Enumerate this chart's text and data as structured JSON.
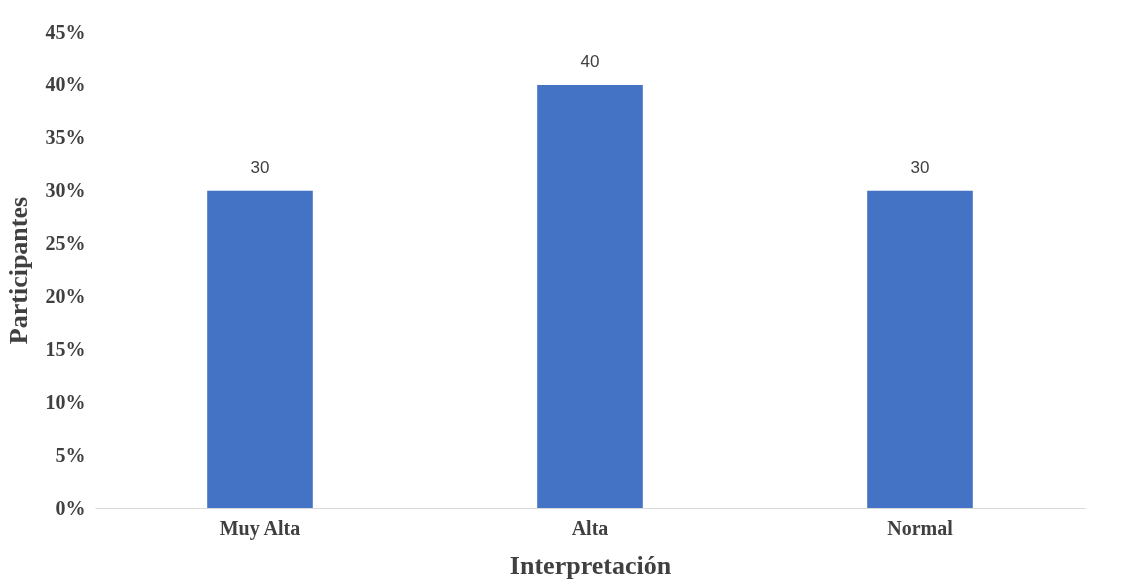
{
  "chart_data": {
    "type": "bar",
    "xlabel": "Interpretación",
    "ylabel": "Participantes",
    "categories": [
      "Muy Alta",
      "Alta",
      "Normal"
    ],
    "values": [
      30,
      40,
      30
    ],
    "color": "#4472c4",
    "data_labels": true,
    "ylim": [
      0,
      45
    ],
    "yticks": [
      {
        "value": 0,
        "label": "0%"
      },
      {
        "value": 5,
        "label": "5%"
      },
      {
        "value": 10,
        "label": "10%"
      },
      {
        "value": 15,
        "label": "15%"
      },
      {
        "value": 20,
        "label": "20%"
      },
      {
        "value": 25,
        "label": "25%"
      },
      {
        "value": 30,
        "label": "30%"
      },
      {
        "value": 35,
        "label": "35%"
      },
      {
        "value": 40,
        "label": "40%"
      },
      {
        "value": 45,
        "label": "45%"
      }
    ],
    "grid": false
  }
}
